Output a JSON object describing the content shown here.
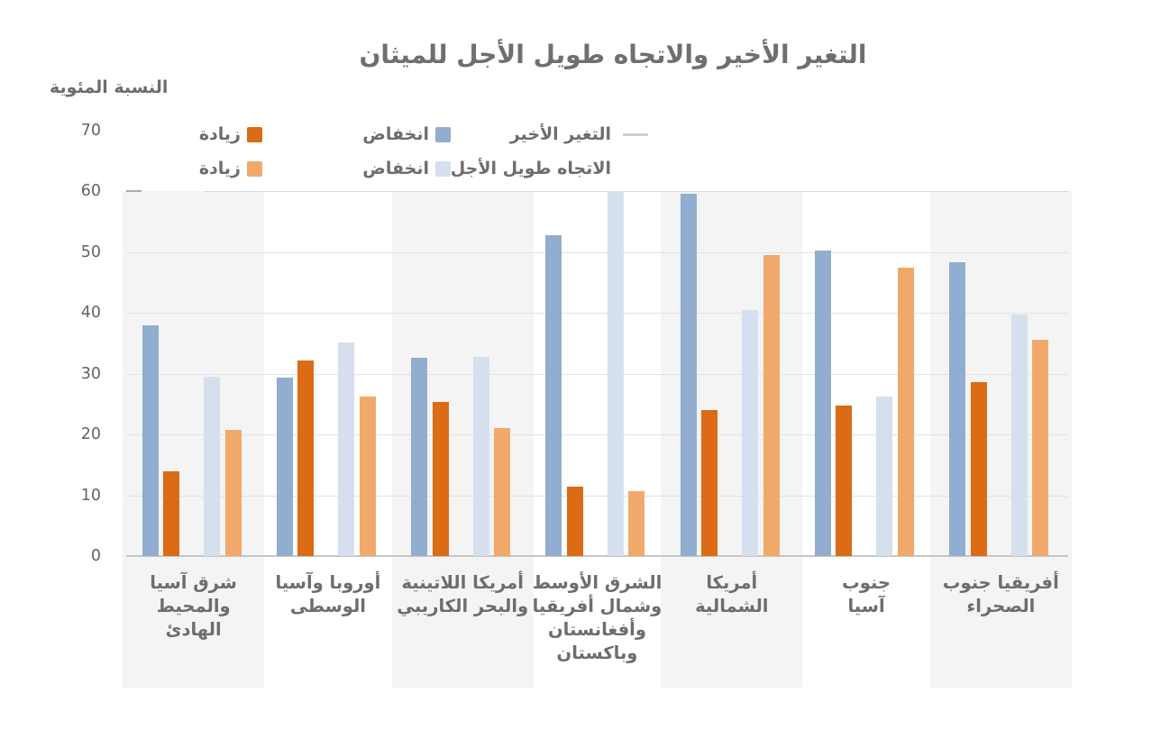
{
  "title": "التغير الأخير والاتجاه طويل الأجل للميثان",
  "y_axis_label": "النسبة المئوية",
  "legend": {
    "rows": [
      {
        "series_label": "التغير الأخير",
        "decrease_label": "انخفاض",
        "increase_label": "زيادة"
      },
      {
        "series_label": "الاتجاه طويل الأجل",
        "decrease_label": "انخفاض",
        "increase_label": "زيادة"
      }
    ]
  },
  "colors": {
    "recent_increase": "#dc6b15",
    "recent_decrease": "#91adcf",
    "longterm_increase": "#f1a96b",
    "longterm_decrease": "#d5dfee",
    "band_background": "#f4f4f5",
    "grid_line": "#e2e2e3",
    "axis_line": "#c6c6c6",
    "text_gray": "#6d6d6d"
  },
  "chart_data": {
    "type": "bar",
    "title": "التغير الأخير والاتجاه طويل الأجل للميثان",
    "ylabel": "النسبة المئوية",
    "ylim": [
      0,
      70
    ],
    "yticks": [
      0,
      10,
      20,
      30,
      40,
      50,
      60,
      70
    ],
    "grid": true,
    "legend_position": "top",
    "categories": [
      "شرق آسيا\nوالمحيط الهادئ",
      "أوروبا وآسيا\nالوسطى",
      "أمريكا اللاتينية\nوالبحر الكاريبي",
      "الشرق الأوسط\nوشمال أفريقيا\nوأفغانستان\nوباكستان",
      "أمريكا\nالشمالية",
      "جنوب\nآسيا",
      "أفريقيا جنوب\nالصحراء"
    ],
    "series": [
      {
        "name": "التغير الأخير - انخفاض",
        "color": "#91adcf",
        "values": [
          38.0,
          29.4,
          32.6,
          52.8,
          59.6,
          50.3,
          48.3
        ]
      },
      {
        "name": "التغير الأخير - زيادة",
        "color": "#dc6b15",
        "values": [
          14.0,
          32.2,
          25.4,
          11.4,
          24.0,
          24.7,
          28.6
        ]
      },
      {
        "name": "الاتجاه طويل الأجل - انخفاض",
        "color": "#d5dfee",
        "values": [
          29.5,
          35.2,
          32.8,
          60.0,
          40.5,
          26.3,
          39.7
        ]
      },
      {
        "name": "الاتجاه طويل الأجل - زيادة",
        "color": "#f1a96b",
        "values": [
          20.8,
          26.2,
          21.0,
          10.7,
          49.5,
          47.5,
          35.6
        ]
      }
    ],
    "shaded_group_indexes": [
      0,
      2,
      4,
      6
    ]
  }
}
